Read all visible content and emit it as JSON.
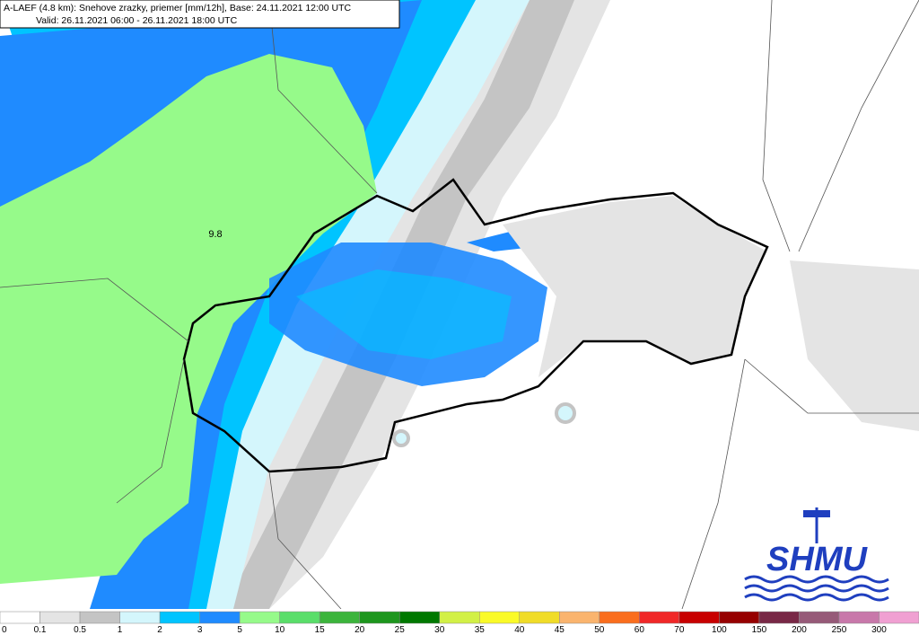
{
  "header": {
    "line1": "A-LAEF (4.8 km): Snehove zrazky, priemer [mm/12h], Base: 24.11.2021 12:00 UTC",
    "line2": "Valid: 26.11.2021 06:00 - 26.11.2021 18:00 UTC"
  },
  "map": {
    "max_label": "9.8"
  },
  "logo": {
    "text": "SHMU"
  },
  "legend": [
    {
      "label": "0",
      "color": "#ffffff"
    },
    {
      "label": "0.1",
      "color": "#e4e4e4"
    },
    {
      "label": "0.5",
      "color": "#c4c4c4"
    },
    {
      "label": "1",
      "color": "#d4f6fc"
    },
    {
      "label": "2",
      "color": "#00c4ff"
    },
    {
      "label": "3",
      "color": "#1f8bff"
    },
    {
      "label": "5",
      "color": "#96fa8a"
    },
    {
      "label": "10",
      "color": "#5ade6a"
    },
    {
      "label": "15",
      "color": "#3cb43c"
    },
    {
      "label": "20",
      "color": "#1e961e"
    },
    {
      "label": "25",
      "color": "#007800"
    },
    {
      "label": "30",
      "color": "#d2f046"
    },
    {
      "label": "35",
      "color": "#fafa28"
    },
    {
      "label": "40",
      "color": "#f0dc28"
    },
    {
      "label": "45",
      "color": "#fab46e"
    },
    {
      "label": "50",
      "color": "#fa6e1e"
    },
    {
      "label": "60",
      "color": "#f02828"
    },
    {
      "label": "70",
      "color": "#c80000"
    },
    {
      "label": "100",
      "color": "#960000"
    },
    {
      "label": "150",
      "color": "#782846"
    },
    {
      "label": "200",
      "color": "#965a78"
    },
    {
      "label": "250",
      "color": "#c878aa"
    },
    {
      "label": "300",
      "color": "#f0a0d2"
    }
  ]
}
